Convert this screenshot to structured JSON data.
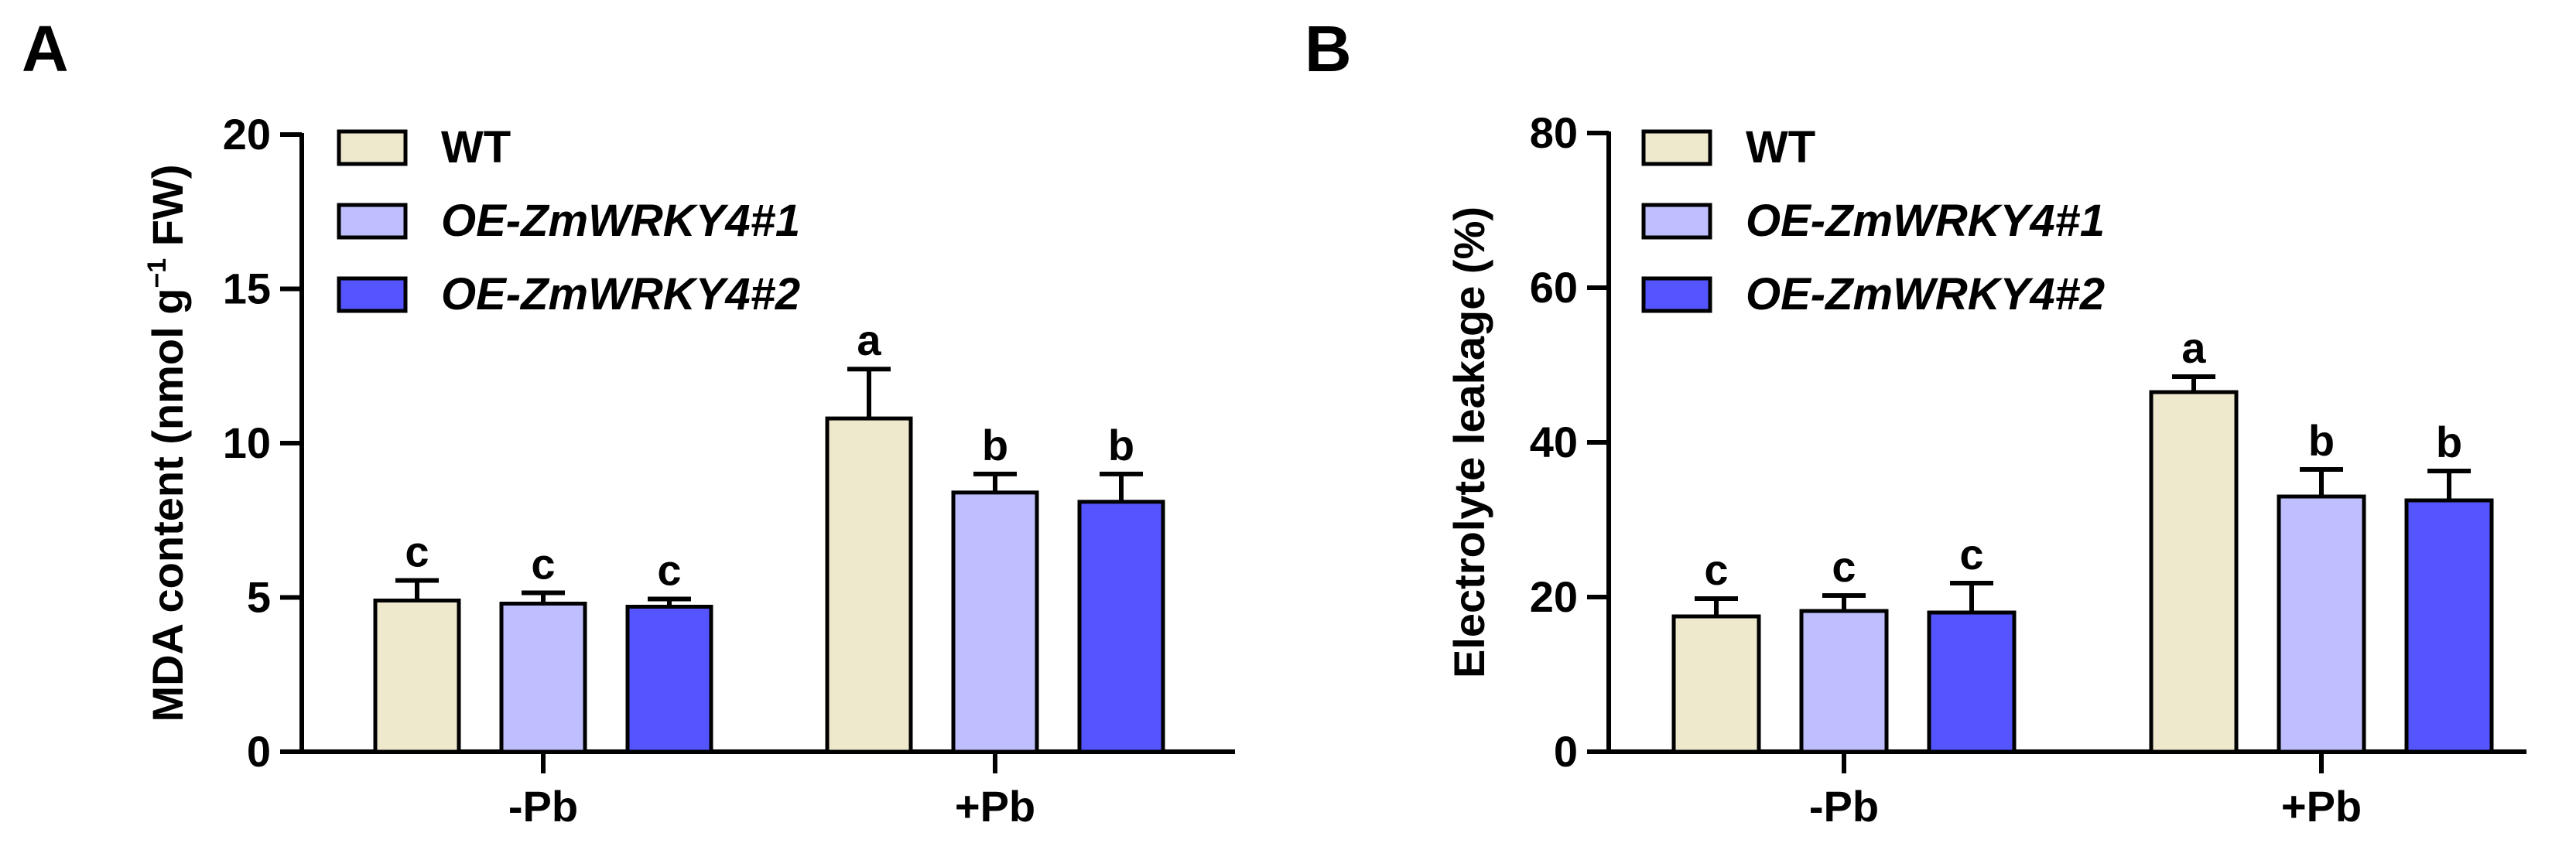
{
  "panels": [
    {
      "letter": "A"
    },
    {
      "letter": "B"
    }
  ],
  "chart_data": [
    {
      "type": "bar",
      "panel": "A",
      "title": "",
      "xlabel": "",
      "ylabel": "MDA content (nmol g",
      "ylabel_sup": "−1",
      "ylabel_tail": " FW)",
      "ylim": [
        0,
        20
      ],
      "yticks": [
        "0",
        "5",
        "10",
        "15",
        "20"
      ],
      "yticks_values": [
        0,
        5,
        10,
        15,
        20
      ],
      "categories": [
        "-Pb",
        "+Pb"
      ],
      "legend_position": "top-left",
      "series": [
        {
          "name": "WT",
          "color": "#EEE8CD",
          "values": [
            4.9,
            10.8
          ],
          "errors": [
            0.65,
            1.6
          ],
          "letters": [
            "c",
            "a"
          ]
        },
        {
          "name": "OE-ZmWRKY4#1",
          "color": "#BFBFFF",
          "values": [
            4.8,
            8.4
          ],
          "errors": [
            0.35,
            0.6
          ],
          "letters": [
            "c",
            "b"
          ]
        },
        {
          "name": "OE-ZmWRKY4#2",
          "color": "#5555FF",
          "values": [
            4.7,
            8.1
          ],
          "errors": [
            0.25,
            0.9
          ],
          "letters": [
            "c",
            "b"
          ]
        }
      ]
    },
    {
      "type": "bar",
      "panel": "B",
      "title": "",
      "xlabel": "",
      "ylabel": "Electrolyte leakage (%)",
      "ylabel_sup": "",
      "ylabel_tail": "",
      "ylim": [
        0,
        80
      ],
      "yticks": [
        "0",
        "20",
        "40",
        "60",
        "80"
      ],
      "yticks_values": [
        0,
        20,
        40,
        60,
        80
      ],
      "categories": [
        "-Pb",
        "+Pb"
      ],
      "legend_position": "top-left",
      "series": [
        {
          "name": "WT",
          "color": "#EEE8CD",
          "values": [
            17.5,
            46.5
          ],
          "errors": [
            2.3,
            2.0
          ],
          "letters": [
            "c",
            "a"
          ]
        },
        {
          "name": "OE-ZmWRKY4#1",
          "color": "#BFBFFF",
          "values": [
            18.2,
            33.0
          ],
          "errors": [
            2.0,
            3.5
          ],
          "letters": [
            "c",
            "b"
          ]
        },
        {
          "name": "OE-ZmWRKY4#2",
          "color": "#5555FF",
          "values": [
            18.0,
            32.5
          ],
          "errors": [
            3.8,
            3.8
          ],
          "letters": [
            "c",
            "b"
          ]
        }
      ]
    }
  ]
}
